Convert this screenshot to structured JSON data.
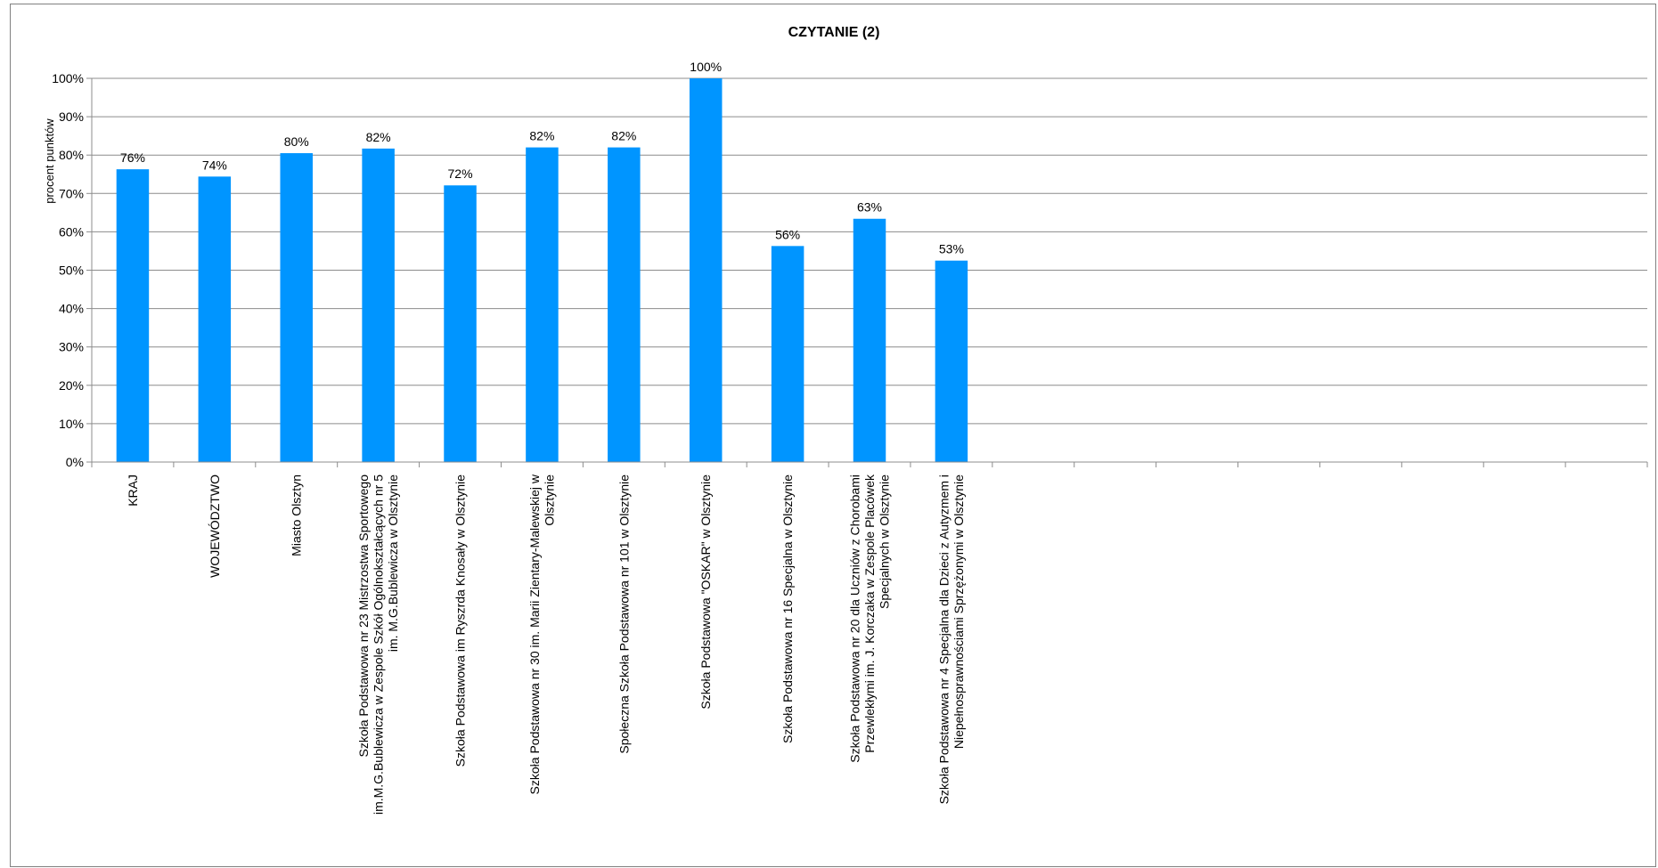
{
  "chart_data": {
    "type": "bar",
    "title": "CZYTANIE  (2)",
    "xlabel": "",
    "ylabel": "procent punktów",
    "ylim": [
      0,
      100
    ],
    "yticks": [
      "0%",
      "10%",
      "20%",
      "30%",
      "40%",
      "50%",
      "60%",
      "70%",
      "80%",
      "90%",
      "100%"
    ],
    "grid": true,
    "legend": "none",
    "bar_color": "#0095FF",
    "categories": [
      [
        "KRAJ"
      ],
      [
        "WOJEWÓDZTWO"
      ],
      [
        "Miasto Olsztyn"
      ],
      [
        "Szkoła Podstawowa nr 23 Mistrzostwa Sportowego",
        "im.M.G.Bublewicza w Zespole Szkół Ogólnokształcących nr 5",
        "im. M.G.Bublewicza w Olsztynie"
      ],
      [
        "Szkoła Podstawowa im Ryszrda Knosały w Olsztynie"
      ],
      [
        "Szkoła Podstawowa nr 30 im. Marii Zientary-Malewskiej w",
        "Olsztynie"
      ],
      [
        "Społeczna Szkoła Podstawowa nr 101 w Olsztynie"
      ],
      [
        "Szkoła Podstawowa \"OSKAR\" w Olsztynie"
      ],
      [
        "Szkoła Podstawowa nr 16 Specjalna w Olsztynie"
      ],
      [
        "Szkoła Podstawowa nr 20 dla Uczniów z Chorobami",
        "Przewlekłymi im. J. Korczaka w Zespole Placówek",
        "Specjalnych w Olsztynie"
      ],
      [
        "Szkoła Podstawowa nr 4 Specjalna dla Dzieci z Autyzmem i",
        "Niepełnosprawnościami Sprzężonymi w Olsztynie"
      ],
      [
        ""
      ],
      [
        ""
      ],
      [
        ""
      ],
      [
        ""
      ],
      [
        ""
      ],
      [
        ""
      ],
      [
        ""
      ],
      [
        ""
      ]
    ],
    "values": [
      76.3,
      74.4,
      80.5,
      81.7,
      72.1,
      82,
      82,
      100,
      56.3,
      63.4,
      52.5,
      null,
      null,
      null,
      null,
      null,
      null,
      null,
      null
    ],
    "data_labels": [
      "76%",
      "74%",
      "80%",
      "82%",
      "72%",
      "82%",
      "82%",
      "100%",
      "56%",
      "63%",
      "53%",
      "",
      "",
      "",
      "",
      "",
      "",
      "",
      ""
    ]
  }
}
